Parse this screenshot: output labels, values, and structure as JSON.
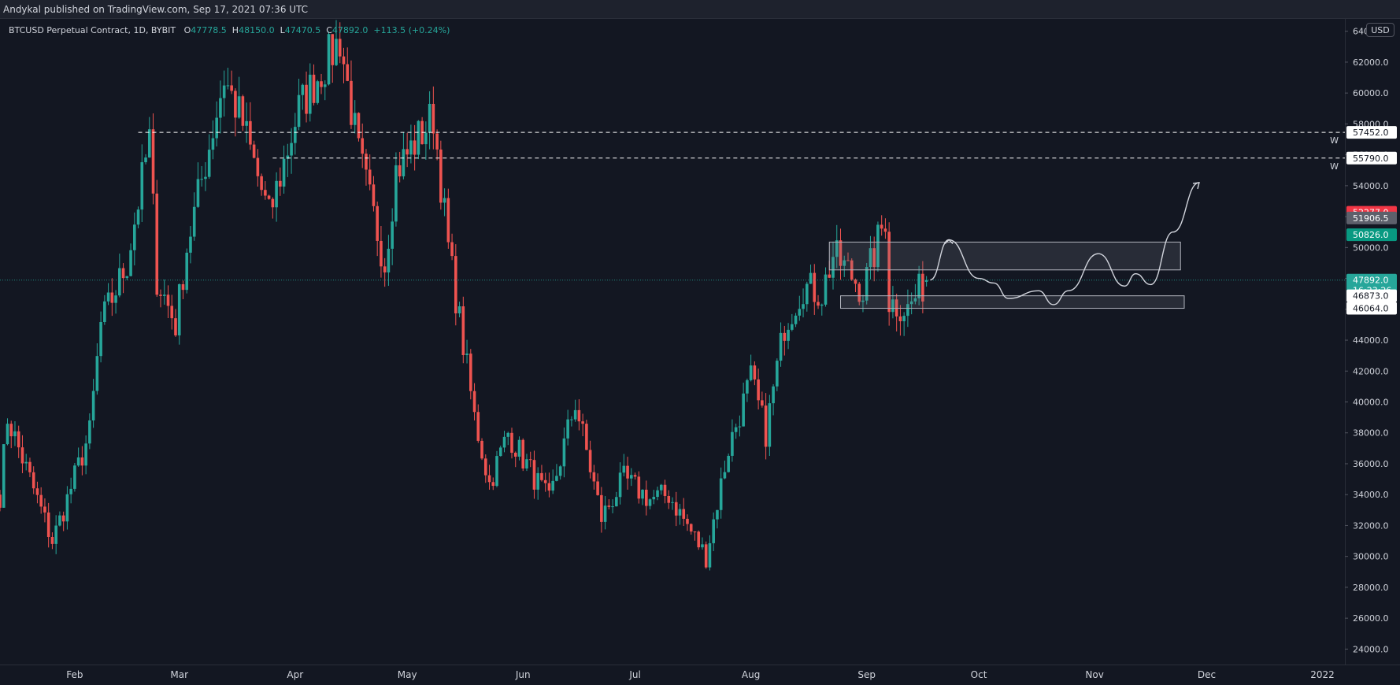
{
  "header": {
    "publisher": "Andykal published on TradingView.com, Sep 17, 2021 07:36 UTC"
  },
  "legend": {
    "symbol": "BTCUSD Perpetual Contract, 1D, BYBIT",
    "open_label": "O",
    "open": "47778.5",
    "high_label": "H",
    "high": "48150.0",
    "low_label": "L",
    "low": "47470.5",
    "close_label": "C",
    "close": "47892.0",
    "change": "+113.5 (+0.24%)"
  },
  "currency_button": "USD",
  "colors": {
    "background": "#131722",
    "up": "#26a69a",
    "down": "#ef5350",
    "axis_text": "#d1d4dc",
    "grid_line": "#2a2e39",
    "dashed_line": "#ffffff",
    "zone": "#787b86",
    "green_badge": "#089981",
    "red_badge": "#f23645",
    "gray_badge": "#5d606b",
    "teal_badge": "#26a69a"
  },
  "chart_data": {
    "type": "candlestick",
    "title": "BTCUSD Perpetual Contract, 1D, BYBIT",
    "xlabel": "",
    "ylabel": "",
    "x_range": [
      "2021-01-12",
      "2022-01-07"
    ],
    "ylim": [
      23000,
      64800
    ],
    "x_ticks": [
      {
        "label": "Feb",
        "date": "2021-02-01"
      },
      {
        "label": "Mar",
        "date": "2021-03-01"
      },
      {
        "label": "Apr",
        "date": "2021-04-01"
      },
      {
        "label": "May",
        "date": "2021-05-01"
      },
      {
        "label": "Jun",
        "date": "2021-06-01"
      },
      {
        "label": "Jul",
        "date": "2021-07-01"
      },
      {
        "label": "Aug",
        "date": "2021-08-01"
      },
      {
        "label": "Sep",
        "date": "2021-09-01"
      },
      {
        "label": "Oct",
        "date": "2021-10-01"
      },
      {
        "label": "Nov",
        "date": "2021-11-01"
      },
      {
        "label": "Dec",
        "date": "2021-12-01"
      },
      {
        "label": "2022",
        "date": "2022-01-01"
      }
    ],
    "y_ticks": [
      "24000.0",
      "26000.0",
      "28000.0",
      "30000.0",
      "32000.0",
      "34000.0",
      "36000.0",
      "38000.0",
      "40000.0",
      "42000.0",
      "44000.0",
      "46000.0",
      "48000.0",
      "50000.0",
      "52000.0",
      "54000.0",
      "56000.0",
      "58000.0",
      "60000.0",
      "62000.0",
      "64000.0"
    ],
    "grid": false,
    "series_anchors": [
      {
        "date": "2021-01-12",
        "close": 34000
      },
      {
        "date": "2021-01-14",
        "close": 39000
      },
      {
        "date": "2021-01-20",
        "close": 35000
      },
      {
        "date": "2021-01-26",
        "close": 31000
      },
      {
        "date": "2021-01-29",
        "close": 33000
      },
      {
        "date": "2021-02-05",
        "close": 38000
      },
      {
        "date": "2021-02-08",
        "close": 45000
      },
      {
        "date": "2021-02-15",
        "close": 49000
      },
      {
        "date": "2021-02-21",
        "close": 57000
      },
      {
        "date": "2021-02-23",
        "close": 48000
      },
      {
        "date": "2021-02-28",
        "close": 45000
      },
      {
        "date": "2021-03-03",
        "close": 50000
      },
      {
        "date": "2021-03-13",
        "close": 61000
      },
      {
        "date": "2021-03-18",
        "close": 58000
      },
      {
        "date": "2021-03-25",
        "close": 52000
      },
      {
        "date": "2021-04-02",
        "close": 59000
      },
      {
        "date": "2021-04-13",
        "close": 63500
      },
      {
        "date": "2021-04-18",
        "close": 56000
      },
      {
        "date": "2021-04-25",
        "close": 49000
      },
      {
        "date": "2021-04-28",
        "close": 55000
      },
      {
        "date": "2021-05-08",
        "close": 58500
      },
      {
        "date": "2021-05-12",
        "close": 50000
      },
      {
        "date": "2021-05-19",
        "close": 39000
      },
      {
        "date": "2021-05-23",
        "close": 34700
      },
      {
        "date": "2021-05-28",
        "close": 38000
      },
      {
        "date": "2021-06-08",
        "close": 33500
      },
      {
        "date": "2021-06-15",
        "close": 40000
      },
      {
        "date": "2021-06-22",
        "close": 32500
      },
      {
        "date": "2021-06-28",
        "close": 35000
      },
      {
        "date": "2021-07-05",
        "close": 33700
      },
      {
        "date": "2021-07-10",
        "close": 34000
      },
      {
        "date": "2021-07-20",
        "close": 30000
      },
      {
        "date": "2021-07-26",
        "close": 37000
      },
      {
        "date": "2021-08-01",
        "close": 41500
      },
      {
        "date": "2021-08-05",
        "close": 38000
      },
      {
        "date": "2021-08-10",
        "close": 45000
      },
      {
        "date": "2021-08-15",
        "close": 47500
      },
      {
        "date": "2021-08-20",
        "close": 47000
      },
      {
        "date": "2021-08-23",
        "close": 49500
      },
      {
        "date": "2021-08-27",
        "close": 48500
      },
      {
        "date": "2021-08-31",
        "close": 47200
      },
      {
        "date": "2021-09-06",
        "close": 52000
      },
      {
        "date": "2021-09-07",
        "close": 46500
      },
      {
        "date": "2021-09-12",
        "close": 46000
      },
      {
        "date": "2021-09-17",
        "close": 47892
      }
    ],
    "last_candle": {
      "date": "2021-09-17",
      "open": 47778.5,
      "high": 48150.0,
      "low": 47470.5,
      "close": 47892.0
    },
    "price_lines": [
      {
        "price": 57452.0,
        "label": "57452.0",
        "tag": "W",
        "style": "dashed",
        "from_date": "2021-02-18"
      },
      {
        "price": 55790.0,
        "label": "55790.0",
        "tag": "W",
        "style": "dashed",
        "from_date": "2021-03-26"
      }
    ],
    "current_price_line": {
      "price": 47892.0
    },
    "zones": [
      {
        "from_date": "2021-08-22",
        "to_date": "2021-11-24",
        "low": 48550,
        "high": 50350
      },
      {
        "from_date": "2021-08-25",
        "to_date": "2021-11-25",
        "low": 46064,
        "high": 46873
      }
    ],
    "price_labels": [
      {
        "price": 52277.0,
        "text": "52277.0",
        "color": "red"
      },
      {
        "price": 51906.5,
        "text": "51906.5",
        "color": "gray"
      },
      {
        "price": 50826.0,
        "text": "50826.0",
        "color": "green"
      },
      {
        "price": 47892.0,
        "text": "47892.0",
        "color": "teal",
        "countdown": "16:23:26"
      },
      {
        "price": 46873.0,
        "text": "46873.0",
        "color": "white"
      },
      {
        "price": 46064.0,
        "text": "46064.0",
        "color": "white"
      }
    ],
    "projection_path": [
      {
        "date": "2021-09-18",
        "price": 47900
      },
      {
        "date": "2021-09-23",
        "price": 50500
      },
      {
        "date": "2021-10-01",
        "price": 48000
      },
      {
        "date": "2021-10-05",
        "price": 47700
      },
      {
        "date": "2021-10-09",
        "price": 46700
      },
      {
        "date": "2021-10-17",
        "price": 47200
      },
      {
        "date": "2021-10-21",
        "price": 46300
      },
      {
        "date": "2021-10-25",
        "price": 47200
      },
      {
        "date": "2021-11-02",
        "price": 49600
      },
      {
        "date": "2021-11-09",
        "price": 47500
      },
      {
        "date": "2021-11-12",
        "price": 48300
      },
      {
        "date": "2021-11-16",
        "price": 47600
      },
      {
        "date": "2021-11-22",
        "price": 51000
      },
      {
        "date": "2021-11-29",
        "price": 54200
      }
    ]
  }
}
